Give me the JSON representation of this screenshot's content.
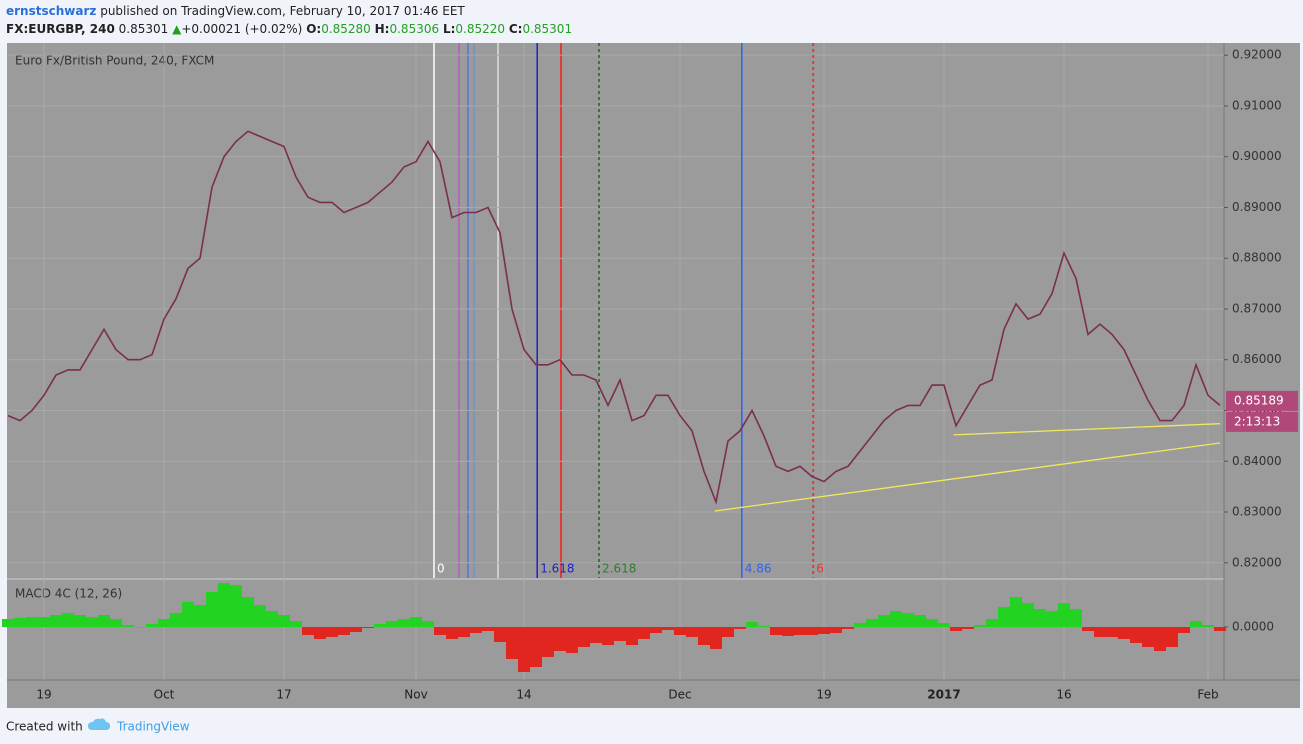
{
  "header": {
    "author": "ernstschwarz",
    "published": "published on TradingView.com, February 10, 2017 01:46 EET",
    "symbol": "FX:EURGBP, 240",
    "price": "0.85301",
    "arrow": "▲",
    "change": "+0.00021 (+0.02%)",
    "o_label": "O:",
    "open": "0.85280",
    "h_label": "H:",
    "high": "0.85306",
    "l_label": "L:",
    "low": "0.85220",
    "c_label": "C:",
    "close": "0.85301"
  },
  "chart_data": [
    {
      "type": "line",
      "title": "Euro Fx/British Pound, 240, FXCM",
      "color": "#7a2f4f",
      "categories": [
        null,
        null,
        null,
        "19",
        null,
        null,
        null,
        null,
        null,
        null,
        null,
        null,
        null,
        "Oct",
        null,
        null,
        null,
        null,
        null,
        null,
        null,
        null,
        null,
        "17",
        null,
        null,
        null,
        null,
        null,
        null,
        null,
        null,
        null,
        null,
        "Nov",
        null,
        null,
        null,
        null,
        null,
        null,
        null,
        null,
        "14",
        null,
        null,
        null,
        null,
        null,
        null,
        null,
        null,
        null,
        null,
        null,
        null,
        "Dec",
        null,
        null,
        null,
        null,
        null,
        null,
        null,
        null,
        null,
        null,
        null,
        "19",
        null,
        null,
        null,
        null,
        null,
        null,
        null,
        null,
        null,
        "2017",
        null,
        null,
        null,
        null,
        null,
        null,
        null,
        null,
        null,
        "16",
        null,
        null,
        null,
        null,
        null,
        null,
        null,
        null,
        null,
        null,
        null,
        "Feb",
        null
      ],
      "values": [
        0.849,
        0.848,
        0.85,
        0.853,
        0.857,
        0.858,
        0.858,
        0.862,
        0.866,
        0.862,
        0.86,
        0.86,
        0.861,
        0.868,
        0.872,
        0.878,
        0.88,
        0.894,
        0.9,
        0.903,
        0.905,
        0.904,
        0.903,
        0.902,
        0.896,
        0.892,
        0.891,
        0.891,
        0.889,
        0.89,
        0.891,
        0.893,
        0.895,
        0.898,
        0.899,
        0.903,
        0.899,
        0.888,
        0.889,
        0.889,
        0.89,
        0.885,
        0.87,
        0.862,
        0.859,
        0.859,
        0.86,
        0.857,
        0.857,
        0.856,
        0.851,
        0.856,
        0.848,
        0.849,
        0.853,
        0.853,
        0.849,
        0.846,
        0.838,
        0.832,
        0.844,
        0.846,
        0.85,
        0.845,
        0.839,
        0.838,
        0.839,
        0.837,
        0.836,
        0.838,
        0.839,
        0.842,
        0.845,
        0.848,
        0.85,
        0.851,
        0.851,
        0.855,
        0.855,
        0.847,
        0.851,
        0.855,
        0.856,
        0.866,
        0.871,
        0.868,
        0.869,
        0.873,
        0.881,
        0.876,
        0.865,
        0.867,
        0.865,
        0.862,
        0.857,
        0.852,
        0.848,
        0.848,
        0.851,
        0.859,
        0.853,
        0.851
      ],
      "ylim": [
        0.817,
        0.9224
      ],
      "yticks": [
        {
          "value": 0.82,
          "label": "0.82000"
        },
        {
          "value": 0.83,
          "label": "0.83000"
        },
        {
          "value": 0.84,
          "label": "0.84000"
        },
        {
          "value": 0.85,
          "label": "0.85000"
        },
        {
          "value": 0.86,
          "label": "0.86000"
        },
        {
          "value": 0.87,
          "label": "0.87000"
        },
        {
          "value": 0.88,
          "label": "0.88000"
        },
        {
          "value": 0.89,
          "label": "0.89000"
        },
        {
          "value": 0.9,
          "label": "0.90000"
        },
        {
          "value": 0.91,
          "label": "0.91000"
        },
        {
          "value": 0.92,
          "label": "0.92000"
        }
      ],
      "grid": true,
      "last_price": 0.85189,
      "last_price_color": "#b0497a",
      "countdown": "2:13:13",
      "time_zones": [
        {
          "label": "0",
          "x": 35.5,
          "color": "#ffffff",
          "dashed": false
        },
        {
          "label": "1.618",
          "x": 44.1,
          "color": "#1e22c8",
          "dashed": false
        },
        {
          "label": "2.618",
          "x": 49.25,
          "color": "#2e7d32",
          "dashed": true
        },
        {
          "label": "4.86",
          "x": 61.15,
          "color": "#2962ff",
          "dashed": false
        },
        {
          "label": "6",
          "x": 67.1,
          "color": "#e53935",
          "dashed": true
        }
      ],
      "trendline_color": "#f2e85a",
      "trendlines": [
        {
          "x": [
            58.9,
            101
          ],
          "y": [
            0.8302,
            0.8436
          ]
        },
        {
          "x": [
            78.8,
            101
          ],
          "y": [
            0.8452,
            0.8474
          ]
        }
      ]
    },
    {
      "type": "bar",
      "title": "MACD 4C (12, 26)",
      "positive_color": "#22d322",
      "negative_color": "#e0261f",
      "values": [
        0.0008,
        0.0009,
        0.001,
        0.001,
        0.0012,
        0.0014,
        0.0012,
        0.001,
        0.0012,
        0.0008,
        0.0002,
        0.0,
        0.0003,
        0.0008,
        0.0014,
        0.0025,
        0.0022,
        0.0035,
        0.0044,
        0.0042,
        0.003,
        0.0022,
        0.0016,
        0.0012,
        0.0006,
        -0.0008,
        -0.0012,
        -0.001,
        -0.0008,
        -0.0005,
        -0.0001,
        0.0003,
        0.0006,
        0.0008,
        0.001,
        0.0006,
        -0.0008,
        -0.0012,
        -0.001,
        -0.0006,
        -0.0004,
        -0.0015,
        -0.0032,
        -0.0045,
        -0.004,
        -0.003,
        -0.0024,
        -0.0026,
        -0.002,
        -0.0016,
        -0.0018,
        -0.0014,
        -0.0018,
        -0.0012,
        -0.0006,
        -0.0003,
        -0.0008,
        -0.001,
        -0.0018,
        -0.0022,
        -0.001,
        -0.0002,
        0.0005,
        0.0001,
        -0.0008,
        -0.0009,
        -0.0008,
        -0.0008,
        -0.0007,
        -0.0006,
        -0.0002,
        0.0004,
        0.0008,
        0.0012,
        0.0016,
        0.0014,
        0.0012,
        0.0008,
        0.0004,
        -0.0004,
        -0.0002,
        0.0002,
        0.0008,
        0.002,
        0.003,
        0.0024,
        0.0018,
        0.0016,
        0.0024,
        0.0018,
        -0.0004,
        -0.001,
        -0.001,
        -0.0012,
        -0.0016,
        -0.002,
        -0.0024,
        -0.002,
        -0.0006,
        0.0006,
        0.0002,
        -0.0004
      ],
      "ylim": [
        -0.0053,
        0.0047
      ],
      "yticks": [
        {
          "value": 0,
          "label": "0.0000"
        }
      ]
    }
  ],
  "footer": {
    "created": "Created with",
    "brand": "TradingView"
  }
}
